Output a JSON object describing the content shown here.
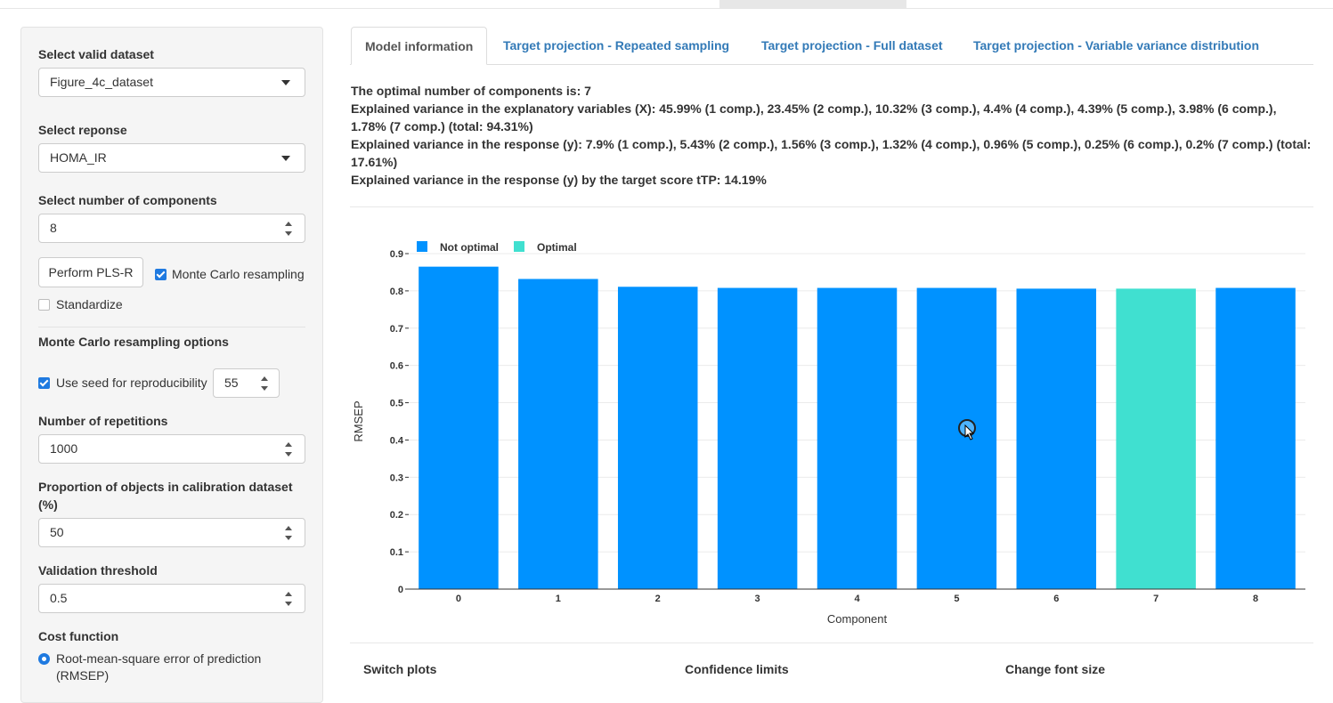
{
  "sidebar": {
    "dataset_label": "Select valid dataset",
    "dataset_value": "Figure_4c_dataset",
    "response_label": "Select reponse",
    "response_value": "HOMA_IR",
    "components_label": "Select number of components",
    "components_value": "8",
    "perform_button": "Perform PLS-R",
    "monte_carlo_label": "Monte Carlo resampling",
    "monte_carlo_checked": true,
    "standardize_label": "Standardize",
    "standardize_checked": false,
    "mc_options_heading": "Monte Carlo resampling options",
    "seed_label": "Use seed for reproducibility",
    "seed_checked": true,
    "seed_value": "55",
    "repetitions_label": "Number of repetitions",
    "repetitions_value": "1000",
    "proportion_label_1": "Proportion of objects in calibration dataset",
    "proportion_label_2": "(%)",
    "proportion_value": "50",
    "validation_label": "Validation threshold",
    "validation_value": "0.5",
    "cost_label": "Cost function",
    "cost_option_1": "Root-mean-square error of prediction",
    "cost_option_1b": "(RMSEP)"
  },
  "tabs": [
    {
      "label": "Model information",
      "active": true
    },
    {
      "label": "Target projection - Repeated sampling",
      "active": false
    },
    {
      "label": "Target projection - Full dataset",
      "active": false
    },
    {
      "label": "Target projection - Variable variance distribution",
      "active": false
    }
  ],
  "info": {
    "line1": "The optimal number of components is: 7",
    "line2": "Explained variance in the explanatory variables (X): 45.99% (1 comp.), 23.45% (2 comp.), 10.32% (3 comp.), 4.4% (4 comp.), 4.39% (5 comp.), 3.98% (6 comp.),",
    "line3": "1.78% (7 comp.) (total: 94.31%)",
    "line4": "Explained variance in the response (y): 7.9% (1 comp.), 5.43% (2 comp.), 1.56% (3 comp.), 1.32% (4 comp.), 0.96% (5 comp.), 0.25% (6 comp.), 0.2% (7 comp.) (total:",
    "line5": "17.61%)",
    "line6": "Explained variance in the response (y) by the target score tTP: 14.19%"
  },
  "bottom": {
    "switch_plots": "Switch plots",
    "confidence_limits": "Confidence limits",
    "change_font": "Change font size"
  },
  "colors": {
    "not_optimal": "#0092ff",
    "optimal": "#40e0d0",
    "link": "#337ab7"
  },
  "chart_data": {
    "type": "bar",
    "categories": [
      "0",
      "1",
      "2",
      "3",
      "4",
      "5",
      "6",
      "7",
      "8"
    ],
    "values": [
      0.865,
      0.832,
      0.811,
      0.808,
      0.808,
      0.808,
      0.806,
      0.806,
      0.808
    ],
    "optimal_index": 7,
    "legend": [
      "Not optimal",
      "Optimal"
    ],
    "legend_position": "top-left",
    "xlabel": "Component",
    "ylabel": "RMSEP",
    "ylim": [
      0,
      0.9
    ],
    "yticks": [
      "0",
      "0.1",
      "0.2",
      "0.3",
      "0.4",
      "0.5",
      "0.6",
      "0.7",
      "0.8",
      "0.9"
    ],
    "grid": true
  }
}
